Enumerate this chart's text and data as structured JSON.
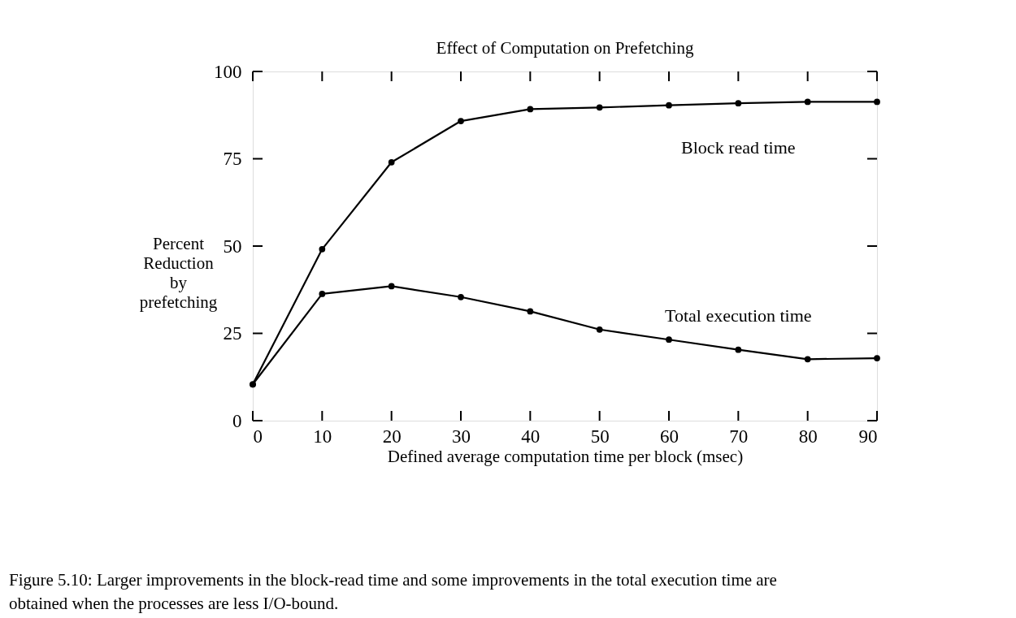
{
  "chart_data": {
    "type": "line",
    "title": "Effect of Computation on Prefetching",
    "xlabel": "Defined average computation time per block (msec)",
    "ylabel": "Percent Reduction by prefetching",
    "x": [
      0,
      10,
      20,
      30,
      40,
      50,
      60,
      70,
      80,
      90
    ],
    "series": [
      {
        "name": "Block read time",
        "color": "#000000",
        "values": [
          10.4,
          49.1,
          74.0,
          85.8,
          89.2,
          89.7,
          90.3,
          90.9,
          91.3,
          91.3
        ]
      },
      {
        "name": "Total execution time",
        "color": "#000000",
        "values": [
          10.4,
          36.3,
          38.5,
          35.4,
          31.3,
          26.1,
          23.2,
          20.3,
          17.6,
          17.9
        ]
      }
    ],
    "xlim": [
      0,
      90
    ],
    "xticks": [
      0,
      10,
      20,
      30,
      40,
      50,
      60,
      70,
      80,
      90
    ],
    "ylim": [
      0,
      100
    ],
    "yticks": [
      0,
      25,
      50,
      75,
      100
    ],
    "grid": false,
    "marker": "circle",
    "line_style": "solid",
    "annotations": [
      "Figure 5.10: Larger improvements in the block-read time and some improvements in the total execution time are obtained when the processes are less I/O-bound."
    ]
  }
}
